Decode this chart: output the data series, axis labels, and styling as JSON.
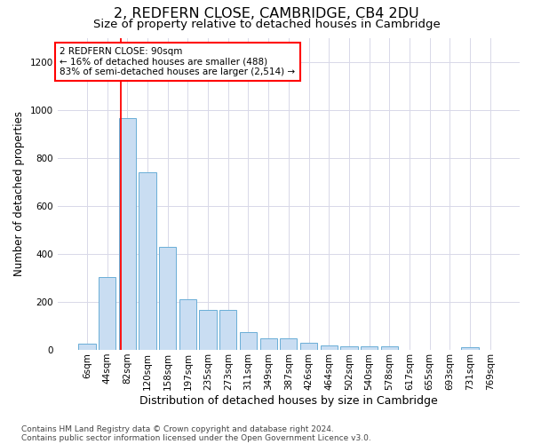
{
  "title": "2, REDFERN CLOSE, CAMBRIDGE, CB4 2DU",
  "subtitle": "Size of property relative to detached houses in Cambridge",
  "xlabel": "Distribution of detached houses by size in Cambridge",
  "ylabel": "Number of detached properties",
  "bar_values": [
    25,
    305,
    965,
    740,
    430,
    210,
    165,
    165,
    75,
    48,
    48,
    30,
    18,
    14,
    14,
    14,
    0,
    0,
    0,
    13,
    0
  ],
  "bar_labels": [
    "6sqm",
    "44sqm",
    "82sqm",
    "120sqm",
    "158sqm",
    "197sqm",
    "235sqm",
    "273sqm",
    "311sqm",
    "349sqm",
    "387sqm",
    "426sqm",
    "464sqm",
    "502sqm",
    "540sqm",
    "578sqm",
    "617sqm",
    "655sqm",
    "693sqm",
    "731sqm",
    "769sqm"
  ],
  "bar_color": "#c9ddf2",
  "bar_edge_color": "#6aaed6",
  "ylim": [
    0,
    1300
  ],
  "yticks": [
    0,
    200,
    400,
    600,
    800,
    1000,
    1200
  ],
  "red_line_x": 2.0,
  "annotation_line1": "2 REDFERN CLOSE: 90sqm",
  "annotation_line2": "← 16% of detached houses are smaller (488)",
  "annotation_line3": "83% of semi-detached houses are larger (2,514) →",
  "footer_line1": "Contains HM Land Registry data © Crown copyright and database right 2024.",
  "footer_line2": "Contains public sector information licensed under the Open Government Licence v3.0.",
  "bg_color": "#ffffff",
  "grid_color": "#d8d8e8",
  "title_fontsize": 11.5,
  "subtitle_fontsize": 9.5,
  "ylabel_fontsize": 8.5,
  "xlabel_fontsize": 9,
  "tick_fontsize": 7.5,
  "annotation_fontsize": 7.5,
  "footer_fontsize": 6.5
}
